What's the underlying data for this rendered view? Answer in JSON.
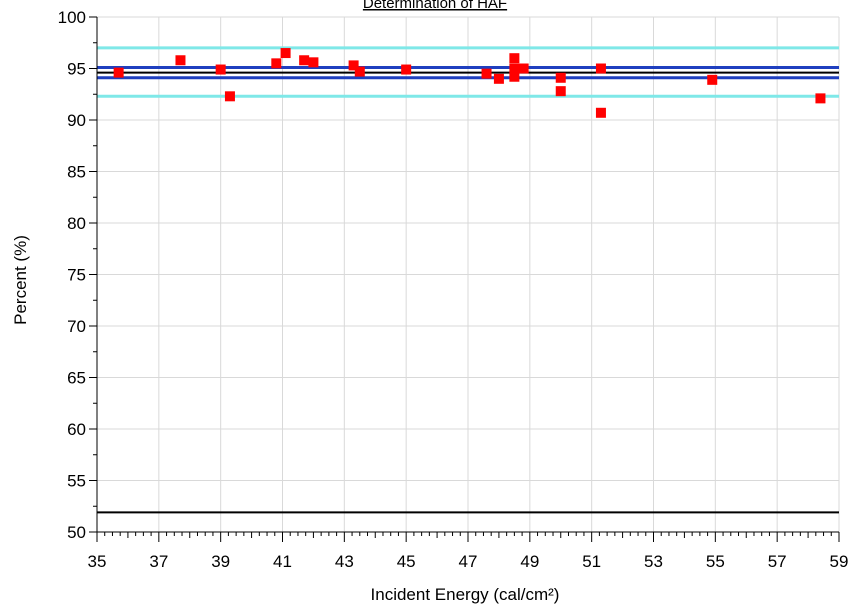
{
  "chart_data": {
    "type": "scatter",
    "title": "Determination of HAF",
    "xlabel": "Incident Energy (cal/cm²)",
    "ylabel": "Percent (%)",
    "xlim": [
      35,
      59
    ],
    "ylim": [
      50,
      100
    ],
    "x_ticks": [
      35,
      37,
      39,
      41,
      43,
      45,
      47,
      49,
      51,
      53,
      55,
      57,
      59
    ],
    "y_ticks": [
      50,
      55,
      60,
      65,
      70,
      75,
      80,
      85,
      90,
      95,
      100
    ],
    "grid": true,
    "points": [
      {
        "x": 35.7,
        "y": 94.6
      },
      {
        "x": 37.7,
        "y": 95.8
      },
      {
        "x": 39.0,
        "y": 94.9
      },
      {
        "x": 39.3,
        "y": 92.3
      },
      {
        "x": 40.8,
        "y": 95.5
      },
      {
        "x": 41.1,
        "y": 96.5
      },
      {
        "x": 41.7,
        "y": 95.8
      },
      {
        "x": 42.0,
        "y": 95.6
      },
      {
        "x": 43.3,
        "y": 95.3
      },
      {
        "x": 43.5,
        "y": 94.7
      },
      {
        "x": 45.0,
        "y": 94.9
      },
      {
        "x": 47.6,
        "y": 94.5
      },
      {
        "x": 48.0,
        "y": 94.0
      },
      {
        "x": 48.5,
        "y": 96.0
      },
      {
        "x": 48.5,
        "y": 95.0
      },
      {
        "x": 48.5,
        "y": 94.2
      },
      {
        "x": 48.8,
        "y": 95.0
      },
      {
        "x": 50.0,
        "y": 94.1
      },
      {
        "x": 50.0,
        "y": 92.8
      },
      {
        "x": 51.3,
        "y": 95.0
      },
      {
        "x": 51.3,
        "y": 90.7
      },
      {
        "x": 54.9,
        "y": 93.9
      },
      {
        "x": 58.4,
        "y": 92.1
      }
    ],
    "reference_lines": [
      {
        "y": 97.0,
        "color": "#7fe8e8"
      },
      {
        "y": 95.1,
        "color": "#1f3fbf"
      },
      {
        "y": 94.6,
        "color": "#000000"
      },
      {
        "y": 94.1,
        "color": "#1f3fbf"
      },
      {
        "y": 92.3,
        "color": "#7fe8e8"
      },
      {
        "y": 51.9,
        "color": "#000000"
      }
    ],
    "marker_color": "#ff0000"
  }
}
